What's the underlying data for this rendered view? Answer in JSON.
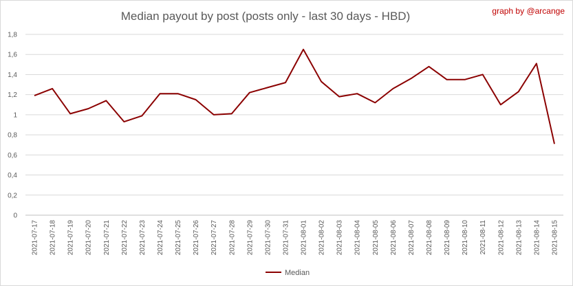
{
  "chart_data": {
    "type": "line",
    "title": "Median payout by post (posts only - last 30 days - HBD)",
    "credit": "graph by @arcange",
    "legend_position": "bottom",
    "grid": true,
    "ylim": [
      0,
      1.8
    ],
    "y_ticks": [
      "0",
      "0,2",
      "0,4",
      "0,6",
      "0,8",
      "1",
      "1,2",
      "1,4",
      "1,6",
      "1,8"
    ],
    "categories": [
      "2021-07-17",
      "2021-07-18",
      "2021-07-19",
      "2021-07-20",
      "2021-07-21",
      "2021-07-22",
      "2021-07-23",
      "2021-07-24",
      "2021-07-25",
      "2021-07-26",
      "2021-07-27",
      "2021-07-28",
      "2021-07-29",
      "2021-07-30",
      "2021-07-31",
      "2021-08-01",
      "2021-08-02",
      "2021-08-03",
      "2021-08-04",
      "2021-08-05",
      "2021-08-06",
      "2021-08-07",
      "2021-08-08",
      "2021-08-09",
      "2021-08-10",
      "2021-08-11",
      "2021-08-12",
      "2021-08-13",
      "2021-08-14",
      "2021-08-15"
    ],
    "series": [
      {
        "name": "Median",
        "color": "#8b0000",
        "values": [
          1.19,
          1.26,
          1.01,
          1.06,
          1.14,
          0.93,
          0.99,
          1.21,
          1.21,
          1.15,
          1.0,
          1.01,
          1.22,
          1.27,
          1.32,
          1.65,
          1.33,
          1.18,
          1.21,
          1.12,
          1.26,
          1.36,
          1.48,
          1.35,
          1.35,
          1.4,
          1.1,
          1.23,
          1.51,
          0.71
        ]
      }
    ]
  }
}
